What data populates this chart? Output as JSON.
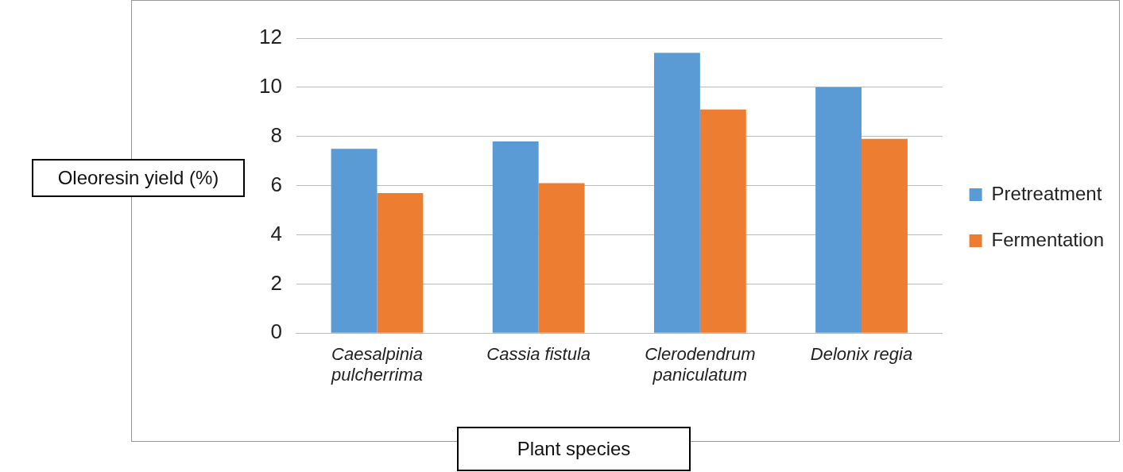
{
  "chart_data": {
    "type": "bar",
    "xlabel": "Plant species",
    "ylabel": "Oleoresin yield (%)",
    "categories": [
      "Caesalpinia pulcherrima",
      "Cassia fistula",
      "Clerodendrum paniculatum",
      "Delonix regia"
    ],
    "series": [
      {
        "name": "Pretreatment",
        "color": "#5b9bd5",
        "values": [
          7.5,
          7.8,
          11.4,
          10.0
        ]
      },
      {
        "name": "Fermentation",
        "color": "#ed7d31",
        "values": [
          5.7,
          6.1,
          9.1,
          7.9
        ]
      }
    ],
    "ylim": [
      0,
      12
    ],
    "yticks": [
      0,
      2,
      4,
      6,
      8,
      10,
      12
    ],
    "grid": "y",
    "legend": "right"
  }
}
